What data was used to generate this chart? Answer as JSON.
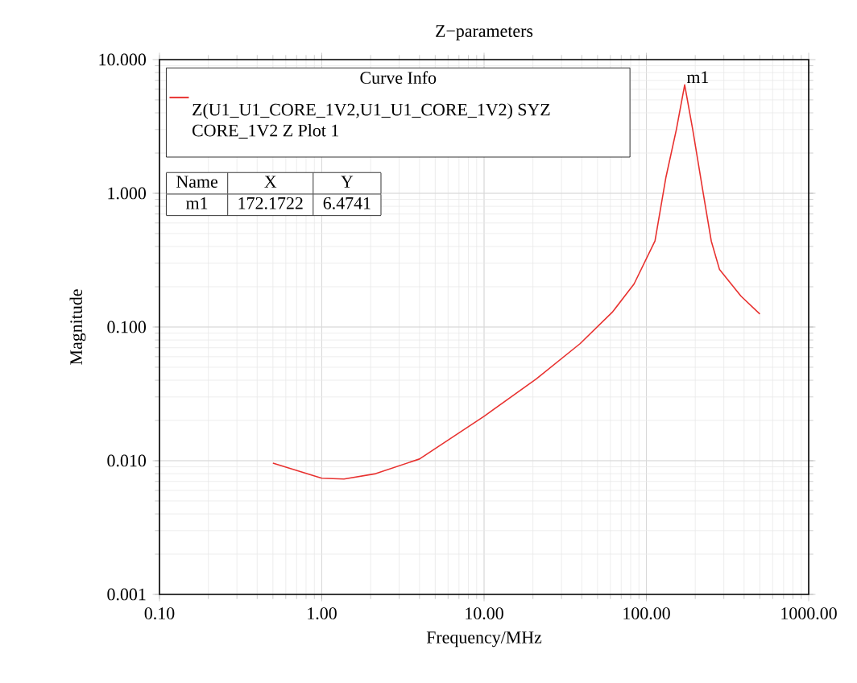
{
  "chart_data": {
    "type": "line",
    "title": "Z−parameters",
    "xlabel": "Frequency/MHz",
    "ylabel": "Magnitude",
    "legend_title": "Curve Info",
    "log": "xy",
    "grid": true,
    "legend": "top left",
    "xlim": [
      0.1,
      1000
    ],
    "ylim": [
      0.001,
      10
    ],
    "xticks": [
      {
        "value": 0.1,
        "label": "0.10"
      },
      {
        "value": 1,
        "label": "1.00"
      },
      {
        "value": 10,
        "label": "10.00"
      },
      {
        "value": 100,
        "label": "100.00"
      },
      {
        "value": 1000,
        "label": "1000.00"
      }
    ],
    "yticks": [
      {
        "value": 0.001,
        "label": "0.001"
      },
      {
        "value": 0.01,
        "label": "0.010"
      },
      {
        "value": 0.1,
        "label": "0.100"
      },
      {
        "value": 1,
        "label": "1.000"
      },
      {
        "value": 10,
        "label": "10.000"
      }
    ],
    "series": [
      {
        "name": "Z(U1_U1_CORE_1V2,U1_U1_CORE_1V2) SYZ CORE_1V2 Z Plot 1",
        "color": "#e8312f",
        "x": [
          0.5,
          1.0,
          1.37,
          2.15,
          4.0,
          10,
          21,
          39,
          62,
          84,
          113,
          132,
          153,
          172.1722,
          193,
          224,
          251,
          282,
          383,
          500
        ],
        "values": [
          0.0096,
          0.0074,
          0.0073,
          0.008,
          0.0103,
          0.0215,
          0.041,
          0.075,
          0.13,
          0.21,
          0.44,
          1.32,
          3.0,
          6.4741,
          3.0,
          1.0,
          0.44,
          0.27,
          0.17,
          0.125
        ]
      }
    ],
    "annotations": [
      "Name",
      "X",
      "Y",
      "m1",
      "172.1722",
      "6.4741",
      {
        "text": "m1",
        "x": 172.1722,
        "y": 6.4741
      }
    ]
  }
}
